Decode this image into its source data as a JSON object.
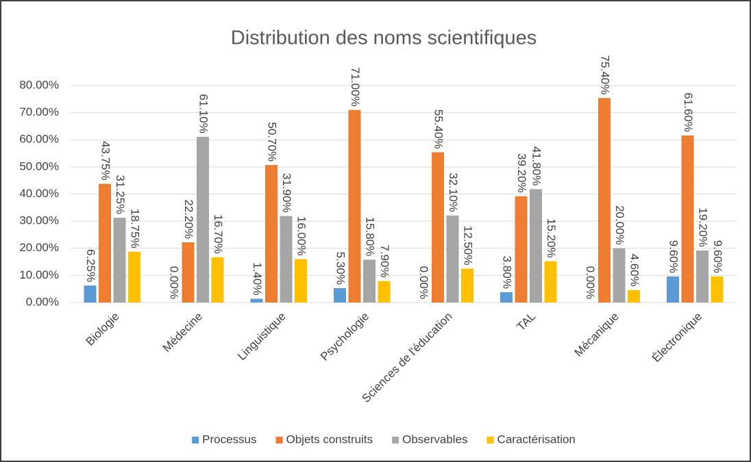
{
  "chart_data": {
    "type": "bar",
    "title": "Distribution des noms scientifiques",
    "categories": [
      "Biologie",
      "Médecine",
      "Linguistique",
      "Psychologie",
      "Sciences de l'éducation",
      "TAL",
      "Mécanique",
      "Électronique"
    ],
    "series": [
      {
        "name": "Processus",
        "color": "#5b9bd5",
        "values": [
          6.25,
          0,
          1.4,
          5.3,
          0,
          3.8,
          0,
          9.6
        ],
        "value_labels": [
          "6.25%",
          "0.00%",
          "1.40%",
          "5.30%",
          "0.00%",
          "3.80%",
          "0.00%",
          "9.60%"
        ]
      },
      {
        "name": "Objets construits",
        "color": "#ed7d31",
        "values": [
          43.75,
          22.2,
          50.7,
          71.0,
          55.4,
          39.2,
          75.4,
          61.6
        ],
        "value_labels": [
          "43.75%",
          "22.20%",
          "50.70%",
          "71.00%",
          "55.40%",
          "39.20%",
          "75.40%",
          "61.60%"
        ]
      },
      {
        "name": "Observables",
        "color": "#a5a5a5",
        "values": [
          31.25,
          61.1,
          31.9,
          15.8,
          32.1,
          41.8,
          20.0,
          19.2
        ],
        "value_labels": [
          "31.25%",
          "61.10%",
          "31.90%",
          "15.80%",
          "32.10%",
          "41.80%",
          "20.00%",
          "19.20%"
        ]
      },
      {
        "name": "Caractérisation",
        "color": "#ffc000",
        "values": [
          18.75,
          16.7,
          16.0,
          7.9,
          12.5,
          15.2,
          4.6,
          9.6
        ],
        "value_labels": [
          "18.75%",
          "16.70%",
          "16.00%",
          "7.90%",
          "12.50%",
          "15.20%",
          "4.60%",
          "9.60%"
        ]
      }
    ],
    "ylim": [
      0,
      80
    ],
    "yticks": [
      {
        "value": 0,
        "label": "0.00%"
      },
      {
        "value": 10,
        "label": "10.00%"
      },
      {
        "value": 20,
        "label": "20.00%"
      },
      {
        "value": 30,
        "label": "30.00%"
      },
      {
        "value": 40,
        "label": "40.00%"
      },
      {
        "value": 50,
        "label": "50.00%"
      },
      {
        "value": 60,
        "label": "60.00%"
      },
      {
        "value": 70,
        "label": "70.00%"
      },
      {
        "value": 80,
        "label": "80.00%"
      }
    ],
    "grid": true,
    "legend": "bottom"
  }
}
